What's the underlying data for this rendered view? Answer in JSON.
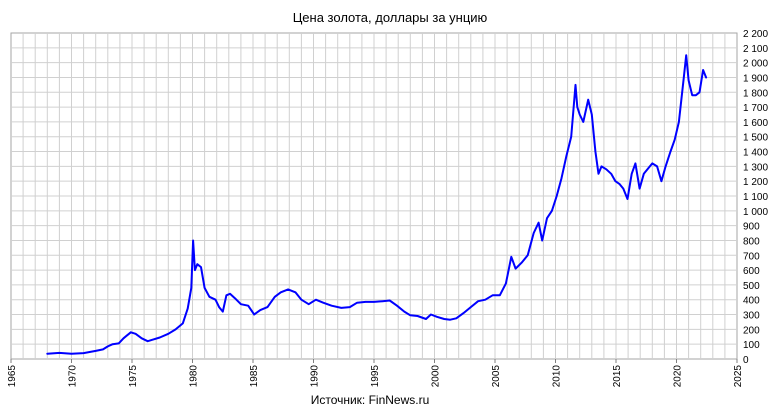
{
  "chart_data": {
    "type": "line",
    "title": "Цена золота, доллары за унцию",
    "source": "Источник: FinNews.ru",
    "xlabel": "",
    "ylabel": "",
    "xlim": [
      1965,
      2025
    ],
    "ylim": [
      0,
      2200
    ],
    "x_ticks": [
      1965,
      1970,
      1975,
      1980,
      1985,
      1990,
      1995,
      2000,
      2005,
      2010,
      2015,
      2020,
      2025
    ],
    "x_tick_labels": [
      "1965",
      "1970",
      "1975",
      "1980",
      "1985",
      "1990",
      "1995",
      "2000",
      "2005",
      "2010",
      "2015",
      "2020",
      "2025"
    ],
    "y_ticks": [
      0,
      100,
      200,
      300,
      400,
      500,
      600,
      700,
      800,
      900,
      1000,
      1100,
      1200,
      1300,
      1400,
      1500,
      1600,
      1700,
      1800,
      1900,
      2000,
      2100,
      2200
    ],
    "y_tick_labels": [
      "0",
      "100",
      "200",
      "300",
      "400",
      "500",
      "600",
      "700",
      "800",
      "900",
      "1 000",
      "1 100",
      "1 200",
      "1 300",
      "1 400",
      "1 500",
      "1 600",
      "1 700",
      "1 800",
      "1 900",
      "2 000",
      "2 100",
      "2 200"
    ],
    "y_axis_side": "right",
    "grid": true,
    "line_color": "#0000ff",
    "series": [
      {
        "name": "",
        "x": [
          1968.0,
          1969.0,
          1970.0,
          1971.0,
          1972.0,
          1972.6,
          1973.0,
          1973.4,
          1973.9,
          1974.3,
          1974.9,
          1975.3,
          1975.8,
          1976.3,
          1976.7,
          1977.3,
          1978.0,
          1978.6,
          1979.2,
          1979.6,
          1979.9,
          1980.05,
          1980.2,
          1980.4,
          1980.7,
          1981.0,
          1981.4,
          1981.9,
          1982.2,
          1982.5,
          1982.8,
          1983.1,
          1983.5,
          1984.0,
          1984.6,
          1985.1,
          1985.6,
          1986.2,
          1986.8,
          1987.3,
          1987.9,
          1988.5,
          1989.0,
          1989.6,
          1990.2,
          1990.8,
          1991.5,
          1992.3,
          1993.0,
          1993.6,
          1994.3,
          1995.0,
          1995.7,
          1996.3,
          1996.9,
          1997.5,
          1998.0,
          1998.6,
          1999.3,
          1999.7,
          2000.2,
          2000.8,
          2001.3,
          2001.8,
          2002.4,
          2003.0,
          2003.6,
          2004.2,
          2004.8,
          2005.4,
          2005.9,
          2006.35,
          2006.7,
          2007.2,
          2007.7,
          2008.2,
          2008.6,
          2008.9,
          2009.3,
          2009.7,
          2010.1,
          2010.5,
          2010.9,
          2011.3,
          2011.65,
          2011.8,
          2012.0,
          2012.3,
          2012.7,
          2013.0,
          2013.3,
          2013.55,
          2013.8,
          2014.2,
          2014.6,
          2014.95,
          2015.3,
          2015.6,
          2015.95,
          2016.3,
          2016.6,
          2016.95,
          2017.3,
          2017.7,
          2018.0,
          2018.4,
          2018.75,
          2019.1,
          2019.5,
          2019.85,
          2020.2,
          2020.6,
          2020.8,
          2021.0,
          2021.3,
          2021.6,
          2021.9,
          2022.2,
          2022.45
        ],
        "y": [
          36,
          41,
          36,
          40,
          55,
          65,
          85,
          100,
          105,
          140,
          180,
          170,
          140,
          120,
          130,
          145,
          170,
          200,
          240,
          340,
          480,
          800,
          600,
          640,
          620,
          480,
          420,
          400,
          350,
          320,
          430,
          440,
          410,
          370,
          360,
          300,
          330,
          350,
          420,
          450,
          470,
          450,
          400,
          370,
          400,
          380,
          360,
          345,
          350,
          380,
          385,
          385,
          390,
          395,
          360,
          320,
          295,
          290,
          270,
          300,
          285,
          270,
          265,
          275,
          310,
          350,
          390,
          400,
          430,
          430,
          510,
          690,
          610,
          650,
          700,
          850,
          920,
          800,
          950,
          1000,
          1100,
          1220,
          1370,
          1500,
          1850,
          1700,
          1650,
          1600,
          1750,
          1650,
          1400,
          1250,
          1300,
          1280,
          1250,
          1200,
          1180,
          1150,
          1080,
          1250,
          1320,
          1150,
          1250,
          1290,
          1320,
          1300,
          1200,
          1300,
          1400,
          1480,
          1600,
          1900,
          2050,
          1880,
          1780,
          1780,
          1800,
          1950,
          1900
        ]
      }
    ]
  }
}
